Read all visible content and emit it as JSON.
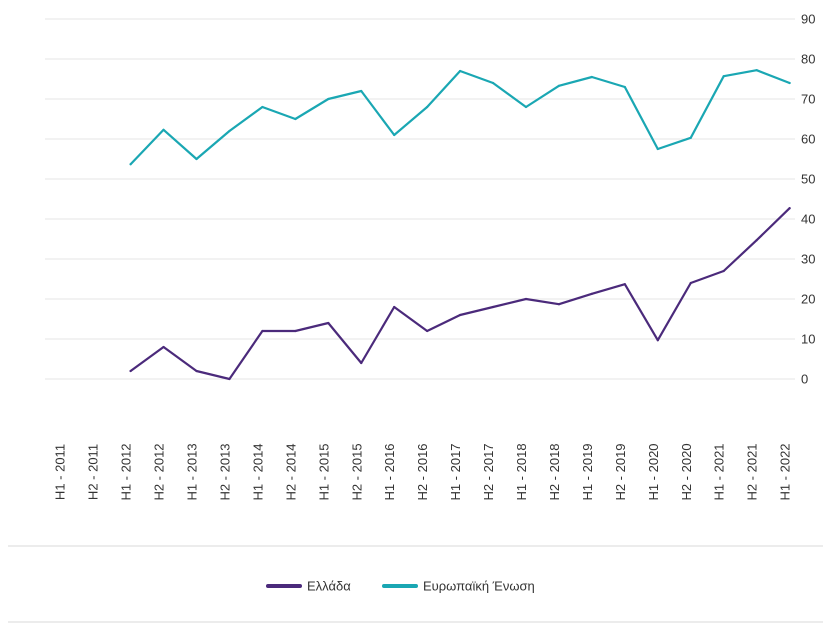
{
  "chart_data": {
    "type": "line",
    "categories": [
      "H1 - 2011",
      "H2 - 2011",
      "H1 - 2012",
      "H2 - 2012",
      "H1 - 2013",
      "H2 - 2013",
      "H1 - 2014",
      "H2 - 2014",
      "H1 - 2015",
      "H2 - 2015",
      "H1 - 2016",
      "H2 - 2016",
      "H1 - 2017",
      "H2 - 2017",
      "H1 - 2018",
      "H2 - 2018",
      "H1 - 2019",
      "H2 - 2019",
      "H1 - 2020",
      "H2 - 2020",
      "H1 - 2021",
      "H2 - 2021",
      "H1 - 2022"
    ],
    "series": [
      {
        "name": "Ελλάδα",
        "color": "#4b2a7b",
        "values": [
          null,
          null,
          2,
          8,
          2,
          0,
          12,
          12,
          14,
          4,
          18,
          12,
          16,
          18,
          20,
          18.7,
          21.3,
          23.7,
          9.7,
          24,
          27,
          34.7,
          42.7
        ]
      },
      {
        "name": "Ευρωπαϊκή Ένωση",
        "color": "#1aa7b3",
        "values": [
          null,
          null,
          53.7,
          62.3,
          55,
          62,
          68,
          65,
          70,
          72,
          61,
          68,
          77,
          74,
          68,
          73.3,
          75.5,
          73,
          57.5,
          60.3,
          75.7,
          77.2,
          74
        ]
      }
    ],
    "y_ticks": [
      "0",
      "10",
      "20",
      "30",
      "40",
      "50",
      "60",
      "70",
      "80",
      "90"
    ],
    "ylim": [
      0,
      90
    ],
    "grid": true,
    "y_axis_side": "right",
    "legend_position": "bottom-center",
    "gridline_color": "#e6e6e6"
  }
}
